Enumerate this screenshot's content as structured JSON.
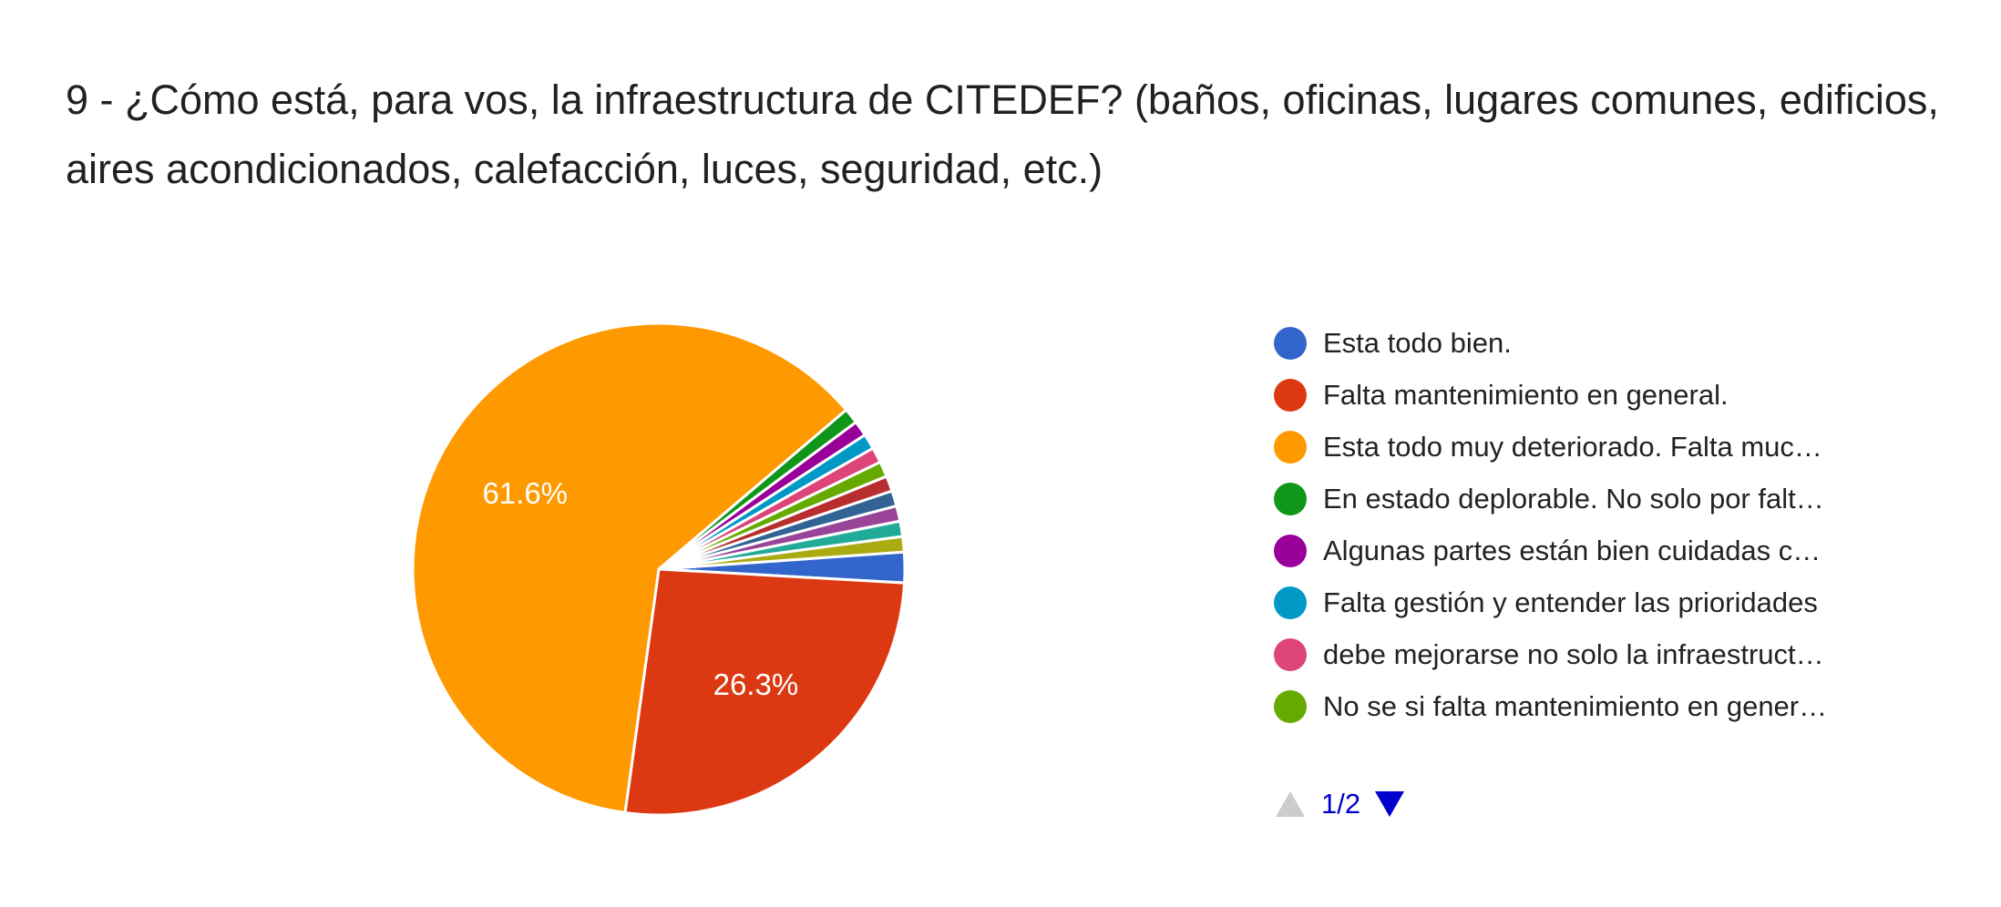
{
  "question_title": "9 - ¿Cómo está,  para vos, la infraestructura de CITEDEF?  (baños, oficinas, lugares comunes, edificios, aires acondicionados, calefacción, luces, seguridad, etc.)",
  "chart_data": {
    "type": "pie",
    "title": "9 - ¿Cómo está,  para vos, la infraestructura de CITEDEF?  (baños, oficinas, lugares comunes, edificios, aires acondicionados, calefacción, luces, seguridad, etc.)",
    "slices": [
      {
        "label": "Esta todo bien.",
        "value": 2.0,
        "color": "#3366cc"
      },
      {
        "label": "Falta mantenimiento en general.",
        "value": 26.3,
        "color": "#dc3912",
        "data_label": "26.3%"
      },
      {
        "label": "Esta todo muy deteriorado. Falta muc…",
        "value": 61.6,
        "color": "#ff9900",
        "data_label": "61.6%"
      },
      {
        "label": "En estado deplorable. No solo por falt…",
        "value": 1.01,
        "color": "#109618"
      },
      {
        "label": "Algunas partes están bien cuidadas c…",
        "value": 1.01,
        "color": "#990099"
      },
      {
        "label": "Falta gestión y entender las prioridades",
        "value": 1.01,
        "color": "#0099c6"
      },
      {
        "label": "debe mejorarse no solo la infraestruct…",
        "value": 1.01,
        "color": "#dd4477"
      },
      {
        "label": "No se si falta mantenimiento en gener…",
        "value": 1.01,
        "color": "#66aa00"
      },
      {
        "label": "",
        "value": 1.01,
        "color": "#b82e2e"
      },
      {
        "label": "",
        "value": 1.01,
        "color": "#316395"
      },
      {
        "label": "",
        "value": 1.01,
        "color": "#994499"
      },
      {
        "label": "",
        "value": 1.01,
        "color": "#22aa99"
      },
      {
        "label": "",
        "value": 1.01,
        "color": "#aaaa11"
      }
    ],
    "legend_position": "right",
    "visible_legend_count": 8
  },
  "pagination": {
    "text": "1/2",
    "up_icon": "triangle-up-icon",
    "down_icon": "triangle-down-icon",
    "up_color": "#cccccc",
    "down_color": "#0000cc"
  }
}
